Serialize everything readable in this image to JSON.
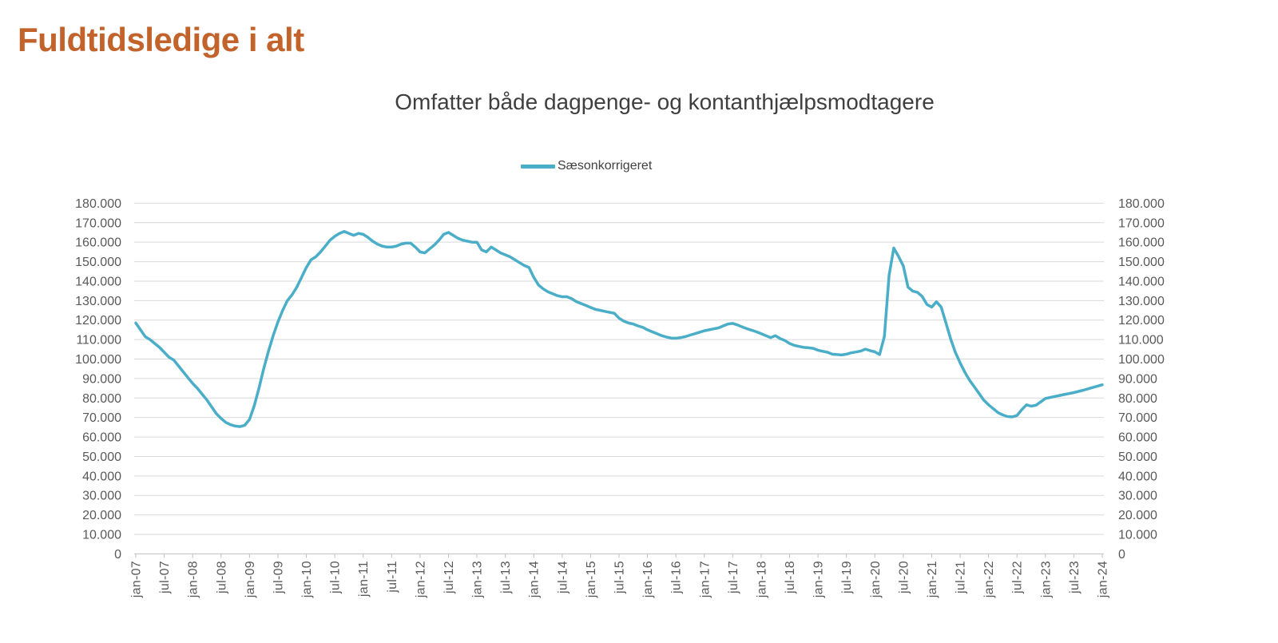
{
  "page": {
    "title": "Fuldtidsledige i alt"
  },
  "chart": {
    "title": "Omfatter både dagpenge- og kontanthjælpsmodtagere",
    "legend": {
      "label": "Sæsonkorrigeret",
      "swatch_color": "#4BAEC9"
    }
  },
  "colors": {
    "brand_title": "#C2632B",
    "series_line": "#4BAEC9",
    "grid": "#D9D9D9",
    "axis": "#BFBFBF",
    "axis_text": "#595959",
    "chart_title_text": "#3F3F3F"
  },
  "chart_data": {
    "type": "line",
    "title": "Omfatter både dagpenge- og kontanthjælpsmodtagere",
    "legend_position": "top-center",
    "grid": "horizontal",
    "x_unit": "month",
    "x_start": "jan-07",
    "x_end": "jan-24",
    "x_tick_every_months": 6,
    "x_tick_labels": [
      "jan-07",
      "jul-07",
      "jan-08",
      "jul-08",
      "jan-09",
      "jul-09",
      "jan-10",
      "jul-10",
      "jan-11",
      "jul-11",
      "jan-12",
      "jul-12",
      "jan-13",
      "jul-13",
      "jan-14",
      "jul-14",
      "jan-15",
      "jul-15",
      "jan-16",
      "jul-16",
      "jan-17",
      "jul-17",
      "jan-18",
      "jul-18",
      "jan-19",
      "jul-19",
      "jan-20",
      "jul-20",
      "jan-21",
      "jul-21",
      "jan-22",
      "jul-22",
      "jan-23",
      "jul-23",
      "jan-24"
    ],
    "ylim": [
      0,
      180000
    ],
    "y_tick_step": 10000,
    "y_tick_labels": [
      "0",
      "10.000",
      "20.000",
      "30.000",
      "40.000",
      "50.000",
      "60.000",
      "70.000",
      "80.000",
      "90.000",
      "100.000",
      "110.000",
      "120.000",
      "130.000",
      "140.000",
      "150.000",
      "160.000",
      "170.000",
      "180.000"
    ],
    "y_axis_sides": [
      "left",
      "right"
    ],
    "series": [
      {
        "name": "Sæsonkorrigeret",
        "color": "#4BAEC9",
        "monthly_from": "jan-07",
        "values": [
          118500,
          115000,
          111500,
          110000,
          108000,
          106000,
          103500,
          101000,
          99500,
          96500,
          93500,
          90500,
          87500,
          85000,
          82000,
          79000,
          75500,
          72000,
          69500,
          67500,
          66300,
          65600,
          65300,
          66000,
          69000,
          76000,
          85000,
          95000,
          104000,
          112000,
          119000,
          125000,
          130000,
          133000,
          137000,
          142000,
          147000,
          151000,
          152500,
          155000,
          158000,
          161000,
          163000,
          164500,
          165500,
          164500,
          163500,
          164500,
          164000,
          162500,
          160500,
          159000,
          158000,
          157500,
          157500,
          158000,
          159000,
          159500,
          159500,
          157500,
          155000,
          154500,
          156500,
          158500,
          161000,
          164000,
          165000,
          163500,
          162000,
          161000,
          160500,
          160000,
          160000,
          156000,
          155000,
          157500,
          156000,
          154500,
          153500,
          152500,
          151000,
          149500,
          148000,
          147000,
          142000,
          138000,
          136000,
          134500,
          133500,
          132500,
          132000,
          132000,
          131000,
          129500,
          128500,
          127500,
          126500,
          125500,
          125000,
          124500,
          124000,
          123500,
          121000,
          119500,
          118500,
          118000,
          117000,
          116300,
          115000,
          114000,
          113000,
          112000,
          111300,
          110800,
          110700,
          111000,
          111500,
          112300,
          113000,
          113800,
          114500,
          115000,
          115500,
          116000,
          117000,
          118000,
          118300,
          117500,
          116500,
          115600,
          114800,
          114000,
          113000,
          112000,
          111000,
          112000,
          110500,
          109500,
          108000,
          107000,
          106500,
          106000,
          105800,
          105500,
          104500,
          104000,
          103500,
          102500,
          102300,
          102100,
          102500,
          103200,
          103600,
          104100,
          105100,
          104300,
          103700,
          102300,
          111600,
          143000,
          157000,
          152600,
          147800,
          136900,
          134900,
          134200,
          132100,
          128000,
          126700,
          129400,
          126700,
          118500,
          110300,
          103400,
          98000,
          93200,
          89100,
          85700,
          82300,
          78900,
          76500,
          74500,
          72500,
          71300,
          70500,
          70300,
          71000,
          74000,
          76500,
          75800,
          76300,
          78000,
          79800,
          80300,
          80800,
          81300,
          81800,
          82300,
          82800,
          83400,
          84000,
          84700,
          85400,
          86100,
          86800
        ]
      }
    ]
  }
}
